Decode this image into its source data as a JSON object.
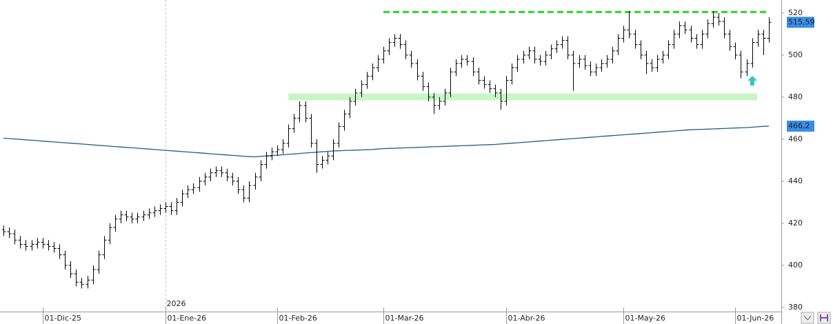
{
  "chart_data": {
    "type": "ohlc",
    "year_label": "2026",
    "categories": [
      null,
      null,
      null,
      null,
      null,
      null,
      null,
      "01-Dic-25",
      null,
      null,
      null,
      null,
      null,
      null,
      null,
      null,
      null,
      null,
      null,
      null,
      null,
      null,
      null,
      null,
      null,
      null,
      null,
      null,
      null,
      "01-Ene-26",
      null,
      null,
      null,
      null,
      null,
      null,
      null,
      null,
      null,
      null,
      null,
      null,
      null,
      null,
      null,
      null,
      null,
      null,
      null,
      "01-Feb-26",
      null,
      null,
      null,
      null,
      null,
      null,
      null,
      null,
      null,
      null,
      null,
      null,
      null,
      null,
      null,
      null,
      null,
      null,
      "01-Mar-26",
      null,
      null,
      null,
      null,
      null,
      null,
      null,
      null,
      null,
      null,
      null,
      null,
      null,
      null,
      null,
      null,
      null,
      null,
      null,
      null,
      null,
      "01-Abr-26",
      null,
      null,
      null,
      null,
      null,
      null,
      null,
      null,
      null,
      null,
      null,
      null,
      null,
      null,
      null,
      null,
      null,
      null,
      null,
      null,
      "01-May-26",
      null,
      null,
      null,
      null,
      null,
      null,
      null,
      null,
      null,
      null,
      null,
      null,
      null,
      null,
      null,
      null,
      null,
      null,
      null,
      "01-Jun-26",
      null,
      null,
      null,
      null,
      null,
      null
    ],
    "ohlc": {
      "color": "#000000",
      "open": [
        417,
        416,
        415,
        412,
        410,
        409,
        410,
        411,
        410,
        409,
        408,
        405,
        400,
        396,
        392,
        391,
        393,
        398,
        405,
        412,
        418,
        422,
        424,
        423,
        422,
        423,
        424,
        425,
        426,
        427,
        428,
        426,
        430,
        434,
        436,
        437,
        440,
        442,
        444,
        445,
        444,
        442,
        440,
        436,
        432,
        438,
        442,
        448,
        452,
        454,
        455,
        458,
        465,
        470,
        476,
        470,
        458,
        448,
        450,
        452,
        458,
        466,
        472,
        478,
        482,
        486,
        490,
        494,
        498,
        502,
        506,
        508,
        505,
        500,
        496,
        490,
        485,
        480,
        476,
        478,
        482,
        492,
        496,
        498,
        497,
        492,
        488,
        486,
        484,
        482,
        478,
        488,
        494,
        498,
        500,
        502,
        498,
        497,
        500,
        503,
        505,
        507,
        500,
        496,
        498,
        495,
        492,
        494,
        496,
        498,
        502,
        508,
        512,
        510,
        505,
        500,
        496,
        494,
        498,
        500,
        505,
        510,
        514,
        512,
        508,
        505,
        510,
        515,
        518,
        516,
        510,
        504,
        500,
        492,
        496,
        506,
        510,
        508
      ],
      "high": [
        419,
        418,
        417,
        414,
        412,
        412,
        413,
        413,
        412,
        411,
        410,
        407,
        402,
        398,
        394,
        395,
        400,
        407,
        414,
        420,
        424,
        426,
        426,
        425,
        425,
        426,
        427,
        428,
        429,
        430,
        430,
        432,
        436,
        438,
        439,
        442,
        444,
        446,
        447,
        447,
        446,
        444,
        442,
        438,
        440,
        444,
        450,
        454,
        456,
        457,
        460,
        467,
        472,
        478,
        478,
        472,
        460,
        452,
        454,
        460,
        468,
        474,
        480,
        484,
        488,
        492,
        496,
        500,
        504,
        508,
        510,
        510,
        507,
        502,
        498,
        492,
        487,
        482,
        480,
        484,
        494,
        498,
        500,
        500,
        499,
        494,
        490,
        488,
        486,
        484,
        490,
        496,
        500,
        502,
        504,
        504,
        500,
        502,
        505,
        507,
        509,
        509,
        502,
        500,
        500,
        497,
        496,
        498,
        500,
        504,
        510,
        514,
        521,
        512,
        507,
        502,
        498,
        500,
        502,
        507,
        512,
        516,
        516,
        514,
        510,
        512,
        517,
        521,
        520,
        518,
        512,
        506,
        502,
        498,
        508,
        512,
        512,
        518
      ],
      "low": [
        414,
        413,
        410,
        408,
        407,
        407,
        408,
        408,
        407,
        406,
        403,
        398,
        394,
        390,
        389,
        389,
        391,
        396,
        403,
        410,
        416,
        420,
        421,
        420,
        420,
        421,
        422,
        423,
        424,
        425,
        424,
        424,
        428,
        432,
        434,
        435,
        438,
        440,
        442,
        442,
        440,
        438,
        434,
        430,
        430,
        436,
        440,
        446,
        450,
        452,
        453,
        456,
        463,
        468,
        468,
        456,
        444,
        446,
        448,
        450,
        456,
        464,
        470,
        476,
        480,
        484,
        488,
        492,
        496,
        500,
        504,
        503,
        498,
        494,
        488,
        483,
        478,
        472,
        474,
        476,
        480,
        490,
        494,
        495,
        490,
        486,
        484,
        482,
        480,
        474,
        476,
        486,
        492,
        496,
        498,
        496,
        495,
        495,
        498,
        501,
        503,
        498,
        483,
        494,
        493,
        490,
        490,
        492,
        494,
        496,
        500,
        506,
        508,
        503,
        498,
        491,
        492,
        492,
        496,
        498,
        503,
        508,
        510,
        506,
        503,
        503,
        508,
        513,
        514,
        508,
        502,
        498,
        489,
        490,
        494,
        504,
        500,
        506
      ],
      "close": [
        416,
        415,
        412,
        410,
        409,
        410,
        411,
        410,
        409,
        408,
        405,
        400,
        396,
        392,
        391,
        393,
        398,
        405,
        412,
        418,
        422,
        424,
        423,
        422,
        423,
        424,
        425,
        426,
        427,
        428,
        426,
        430,
        434,
        436,
        437,
        440,
        442,
        444,
        445,
        444,
        442,
        440,
        436,
        432,
        438,
        442,
        448,
        452,
        454,
        455,
        458,
        465,
        470,
        476,
        470,
        458,
        448,
        450,
        452,
        458,
        466,
        472,
        478,
        482,
        486,
        490,
        494,
        498,
        502,
        506,
        508,
        505,
        500,
        496,
        490,
        485,
        480,
        476,
        478,
        482,
        492,
        496,
        498,
        497,
        492,
        488,
        486,
        484,
        482,
        478,
        488,
        494,
        498,
        500,
        502,
        498,
        497,
        500,
        503,
        505,
        507,
        500,
        496,
        498,
        495,
        492,
        494,
        496,
        498,
        502,
        508,
        512,
        510,
        505,
        500,
        496,
        494,
        498,
        500,
        505,
        510,
        514,
        512,
        508,
        505,
        510,
        515,
        518,
        516,
        510,
        504,
        500,
        492,
        496,
        506,
        510,
        508,
        515.59
      ],
      "last_label": "515,59",
      "label_color": "#3a8ee6"
    },
    "ma": {
      "color": "#1f5f7a",
      "label_color": "#3a8ee6",
      "last_label": "466,2",
      "values": [
        460.5,
        460.3,
        460.1,
        459.9,
        459.7,
        459.5,
        459.3,
        459.1,
        458.9,
        458.7,
        458.5,
        458.3,
        458.1,
        457.9,
        457.7,
        457.5,
        457.3,
        457.1,
        456.9,
        456.7,
        456.5,
        456.3,
        456.1,
        455.9,
        455.7,
        455.5,
        455.3,
        455.1,
        454.9,
        454.7,
        454.5,
        454.3,
        454.1,
        453.9,
        453.7,
        453.5,
        453.3,
        453.1,
        452.9,
        452.7,
        452.5,
        452.3,
        452.1,
        451.9,
        451.7,
        451.6,
        451.8,
        452.0,
        452.2,
        452.4,
        452.6,
        452.8,
        453.0,
        453.2,
        453.4,
        453.6,
        453.8,
        454.0,
        454.2,
        454.4,
        454.5,
        454.6,
        454.7,
        454.8,
        454.9,
        455.0,
        455.1,
        455.3,
        455.5,
        455.6,
        455.7,
        455.8,
        455.9,
        456.0,
        456.1,
        456.2,
        456.3,
        456.4,
        456.5,
        456.6,
        456.7,
        456.8,
        456.9,
        457.0,
        457.1,
        457.2,
        457.3,
        457.4,
        457.5,
        457.7,
        457.9,
        458.1,
        458.3,
        458.5,
        458.7,
        458.9,
        459.1,
        459.3,
        459.5,
        459.7,
        459.9,
        460.1,
        460.3,
        460.5,
        460.7,
        460.9,
        461.1,
        461.3,
        461.5,
        461.7,
        461.9,
        462.1,
        462.3,
        462.5,
        462.7,
        462.9,
        463.1,
        463.3,
        463.5,
        463.7,
        463.9,
        464.1,
        464.3,
        464.5,
        464.6,
        464.7,
        464.8,
        464.9,
        465.0,
        465.1,
        465.2,
        465.3,
        465.4,
        465.5,
        465.7,
        465.9,
        466.1,
        466.2
      ]
    },
    "resistance": {
      "value": 520.5,
      "color": "#22dd22"
    },
    "support_band": {
      "range": [
        478.5,
        481.7
      ],
      "color": "#c6f6c6"
    },
    "ylim": [
      378,
      526.2
    ],
    "yticks": [
      380,
      400,
      420,
      440,
      460,
      480,
      500,
      520
    ]
  }
}
